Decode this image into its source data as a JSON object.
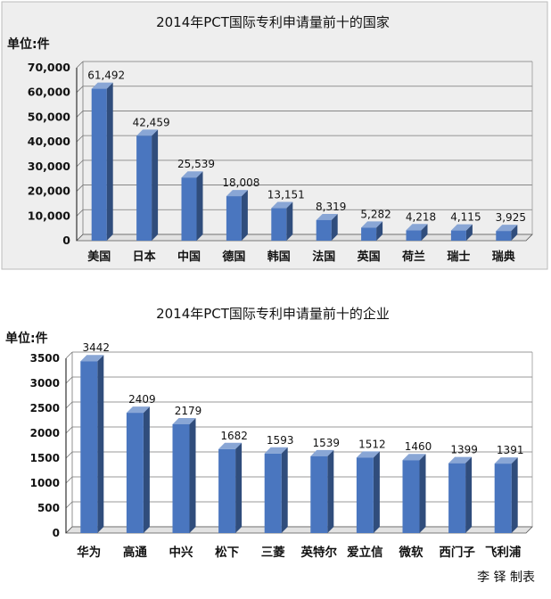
{
  "charts": [
    {
      "panel_background": "#eeeeee",
      "title": "2014年PCT国际专利申请量前十的国家",
      "unit_label": "单位:件",
      "chart_data": {
        "type": "bar",
        "categories": [
          "美国",
          "日本",
          "中国",
          "德国",
          "韩国",
          "法国",
          "英国",
          "荷兰",
          "瑞士",
          "瑞典"
        ],
        "values": [
          61492,
          42459,
          25539,
          18008,
          13151,
          8319,
          5282,
          4218,
          4115,
          3925
        ],
        "value_labels": [
          "61,492",
          "42,459",
          "25,539",
          "18,008",
          "13,151",
          "8,319",
          "5,282",
          "4,218",
          "4,115",
          "3,925"
        ],
        "y_ticks": [
          "0",
          "10,000",
          "20,000",
          "30,000",
          "40,000",
          "50,000",
          "60,000",
          "70,000"
        ],
        "ylim": [
          0,
          70000
        ],
        "grid": true,
        "bar_color": "#4a76bf"
      }
    },
    {
      "panel_background": "#ffffff",
      "title": "2014年PCT国际专利申请量前十的企业",
      "unit_label": "单位:件",
      "chart_data": {
        "type": "bar",
        "categories": [
          "华为",
          "高通",
          "中兴",
          "松下",
          "三菱",
          "英特尔",
          "爱立信",
          "微软",
          "西门子",
          "飞利浦"
        ],
        "values": [
          3442,
          2409,
          2179,
          1682,
          1593,
          1539,
          1512,
          1460,
          1399,
          1391
        ],
        "value_labels": [
          "3442",
          "2409",
          "2179",
          "1682",
          "1593",
          "1539",
          "1512",
          "1460",
          "1399",
          "1391"
        ],
        "y_ticks": [
          "0",
          "500",
          "1000",
          "1500",
          "2000",
          "2500",
          "3000",
          "3500"
        ],
        "ylim": [
          0,
          3500
        ],
        "grid": true,
        "bar_color": "#4a76bf"
      }
    }
  ],
  "credit": "李 铎 制表"
}
